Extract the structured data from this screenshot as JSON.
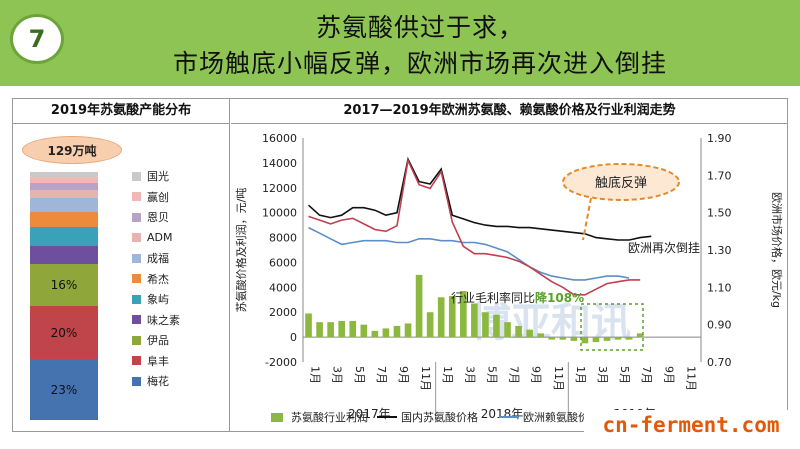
{
  "slide": {
    "number": "7",
    "title_line1": "苏氨酸供过于求，",
    "title_line2": "市场触底小幅反弹，欧洲市场再次进入倒挂"
  },
  "left_panel": {
    "title": "2019年苏氨酸产能分布",
    "capacity_badge": "129万吨",
    "segments_top_to_bottom": [
      {
        "name": "国光",
        "color": "#c9c9c9",
        "label": "",
        "share": 2
      },
      {
        "name": "赢创",
        "color": "#f2b6b6",
        "label": "",
        "share": 2
      },
      {
        "name": "恩贝",
        "color": "#b8a3c7",
        "label": "",
        "share": 3
      },
      {
        "name": "ADM",
        "color": "#e8b2b2",
        "label": "",
        "share": 3
      },
      {
        "name": "成福",
        "color": "#9fb6d9",
        "label": "",
        "share": 5
      },
      {
        "name": "希杰",
        "color": "#ee8a3c",
        "label": "",
        "share": 6
      },
      {
        "name": "象屿",
        "color": "#3aa2b8",
        "label": "",
        "share": 7
      },
      {
        "name": "味之素",
        "color": "#6e4f9e",
        "label": "",
        "share": 7
      },
      {
        "name": "伊品",
        "color": "#8fa63a",
        "label": "16%",
        "share": 16
      },
      {
        "name": "阜丰",
        "color": "#c0454b",
        "label": "20%",
        "share": 20
      },
      {
        "name": "梅花",
        "color": "#4473b0",
        "label": "23%",
        "share": 23
      }
    ],
    "legend_order": [
      "国光",
      "赢创",
      "恩贝",
      "ADM",
      "成福",
      "希杰",
      "象屿",
      "味之素",
      "伊品",
      "阜丰",
      "梅花"
    ]
  },
  "right_panel": {
    "title": "2017—2019年欧洲苏氨酸、赖氨酸价格及行业利润走势"
  },
  "chart_data": {
    "type": "bar+line",
    "title": "2017—2019年欧洲苏氨酸、赖氨酸价格及行业利润走势",
    "ylabel": "苏氨酸价格及利润，元/吨",
    "y2label": "欧洲市场价格，欧元/kg",
    "ylim": [
      -2000,
      16000
    ],
    "y_ticks": [
      -2000,
      0,
      2000,
      4000,
      6000,
      8000,
      10000,
      12000,
      14000,
      16000
    ],
    "y2lim": [
      0.7,
      1.9
    ],
    "y2_ticks": [
      "0.70",
      "0.90",
      "1.10",
      "1.30",
      "1.50",
      "1.70",
      "1.90"
    ],
    "x_tick_labels": [
      "1月",
      "3月",
      "5月",
      "7月",
      "9月",
      "11月",
      "1月",
      "3月",
      "5月",
      "7月",
      "9月",
      "11月",
      "1月",
      "3月",
      "5月",
      "7月",
      "9月",
      "11月"
    ],
    "years": [
      "2017年",
      "2018年",
      "2019年"
    ],
    "months_total": 36,
    "series": [
      {
        "name": "苏氨酸行业利润",
        "kind": "bar",
        "axis": "left",
        "color": "#8db83f",
        "values": [
          1900,
          1200,
          1200,
          1300,
          1300,
          1000,
          500,
          700,
          900,
          1100,
          5000,
          2000,
          3200,
          3300,
          3700,
          2700,
          2000,
          1800,
          1200,
          900,
          600,
          300,
          -200,
          -200,
          -300,
          -500,
          -400,
          -300,
          -200,
          -200,
          300,
          null,
          null,
          null,
          null,
          null
        ]
      },
      {
        "name": "国内苏氨酸价格",
        "kind": "line",
        "axis": "left",
        "color": "#111111",
        "values": [
          10600,
          9800,
          9600,
          9800,
          10400,
          10400,
          10200,
          9800,
          10000,
          14300,
          12500,
          12300,
          13500,
          9800,
          9500,
          9200,
          9000,
          8900,
          8900,
          8800,
          8800,
          8700,
          8600,
          8500,
          8400,
          8300,
          8000,
          7900,
          7800,
          7800,
          8000,
          8100,
          null,
          null,
          null,
          null
        ]
      },
      {
        "name": "欧洲赖氨酸价格",
        "kind": "line",
        "axis": "right",
        "color": "#5b8ec7",
        "values": [
          1.42,
          1.39,
          1.36,
          1.33,
          1.34,
          1.35,
          1.35,
          1.35,
          1.34,
          1.34,
          1.36,
          1.36,
          1.35,
          1.35,
          1.34,
          1.34,
          1.33,
          1.31,
          1.29,
          1.25,
          1.21,
          1.18,
          1.16,
          1.15,
          1.14,
          1.14,
          1.15,
          1.16,
          1.16,
          1.15,
          null,
          null,
          null,
          null,
          null,
          null
        ]
      },
      {
        "name": "欧洲苏氨酸价格",
        "kind": "line",
        "axis": "right",
        "color": "#c0404f",
        "values": [
          1.48,
          1.46,
          1.44,
          1.46,
          1.47,
          1.44,
          1.41,
          1.4,
          1.43,
          1.78,
          1.65,
          1.63,
          1.72,
          1.45,
          1.32,
          1.28,
          1.28,
          1.27,
          1.26,
          1.24,
          1.21,
          1.17,
          1.13,
          1.1,
          1.06,
          1.06,
          1.09,
          1.12,
          1.13,
          1.14,
          1.14,
          null,
          null,
          null,
          null,
          null
        ]
      }
    ],
    "legend": [
      "苏氨酸行业利润",
      "国内苏氨酸价格",
      "欧洲赖氨酸价格",
      "欧洲苏氨酸价格"
    ],
    "annotations": [
      {
        "text": "触底反弹",
        "style": "dashed-orange-bubble"
      },
      {
        "text": "欧洲再次倒挂"
      },
      {
        "text_prefix": "行业毛利率同比",
        "text_highlight": "降108%"
      }
    ],
    "watermark": "博亚和讯"
  },
  "watermark_site": "cn-ferment.com"
}
